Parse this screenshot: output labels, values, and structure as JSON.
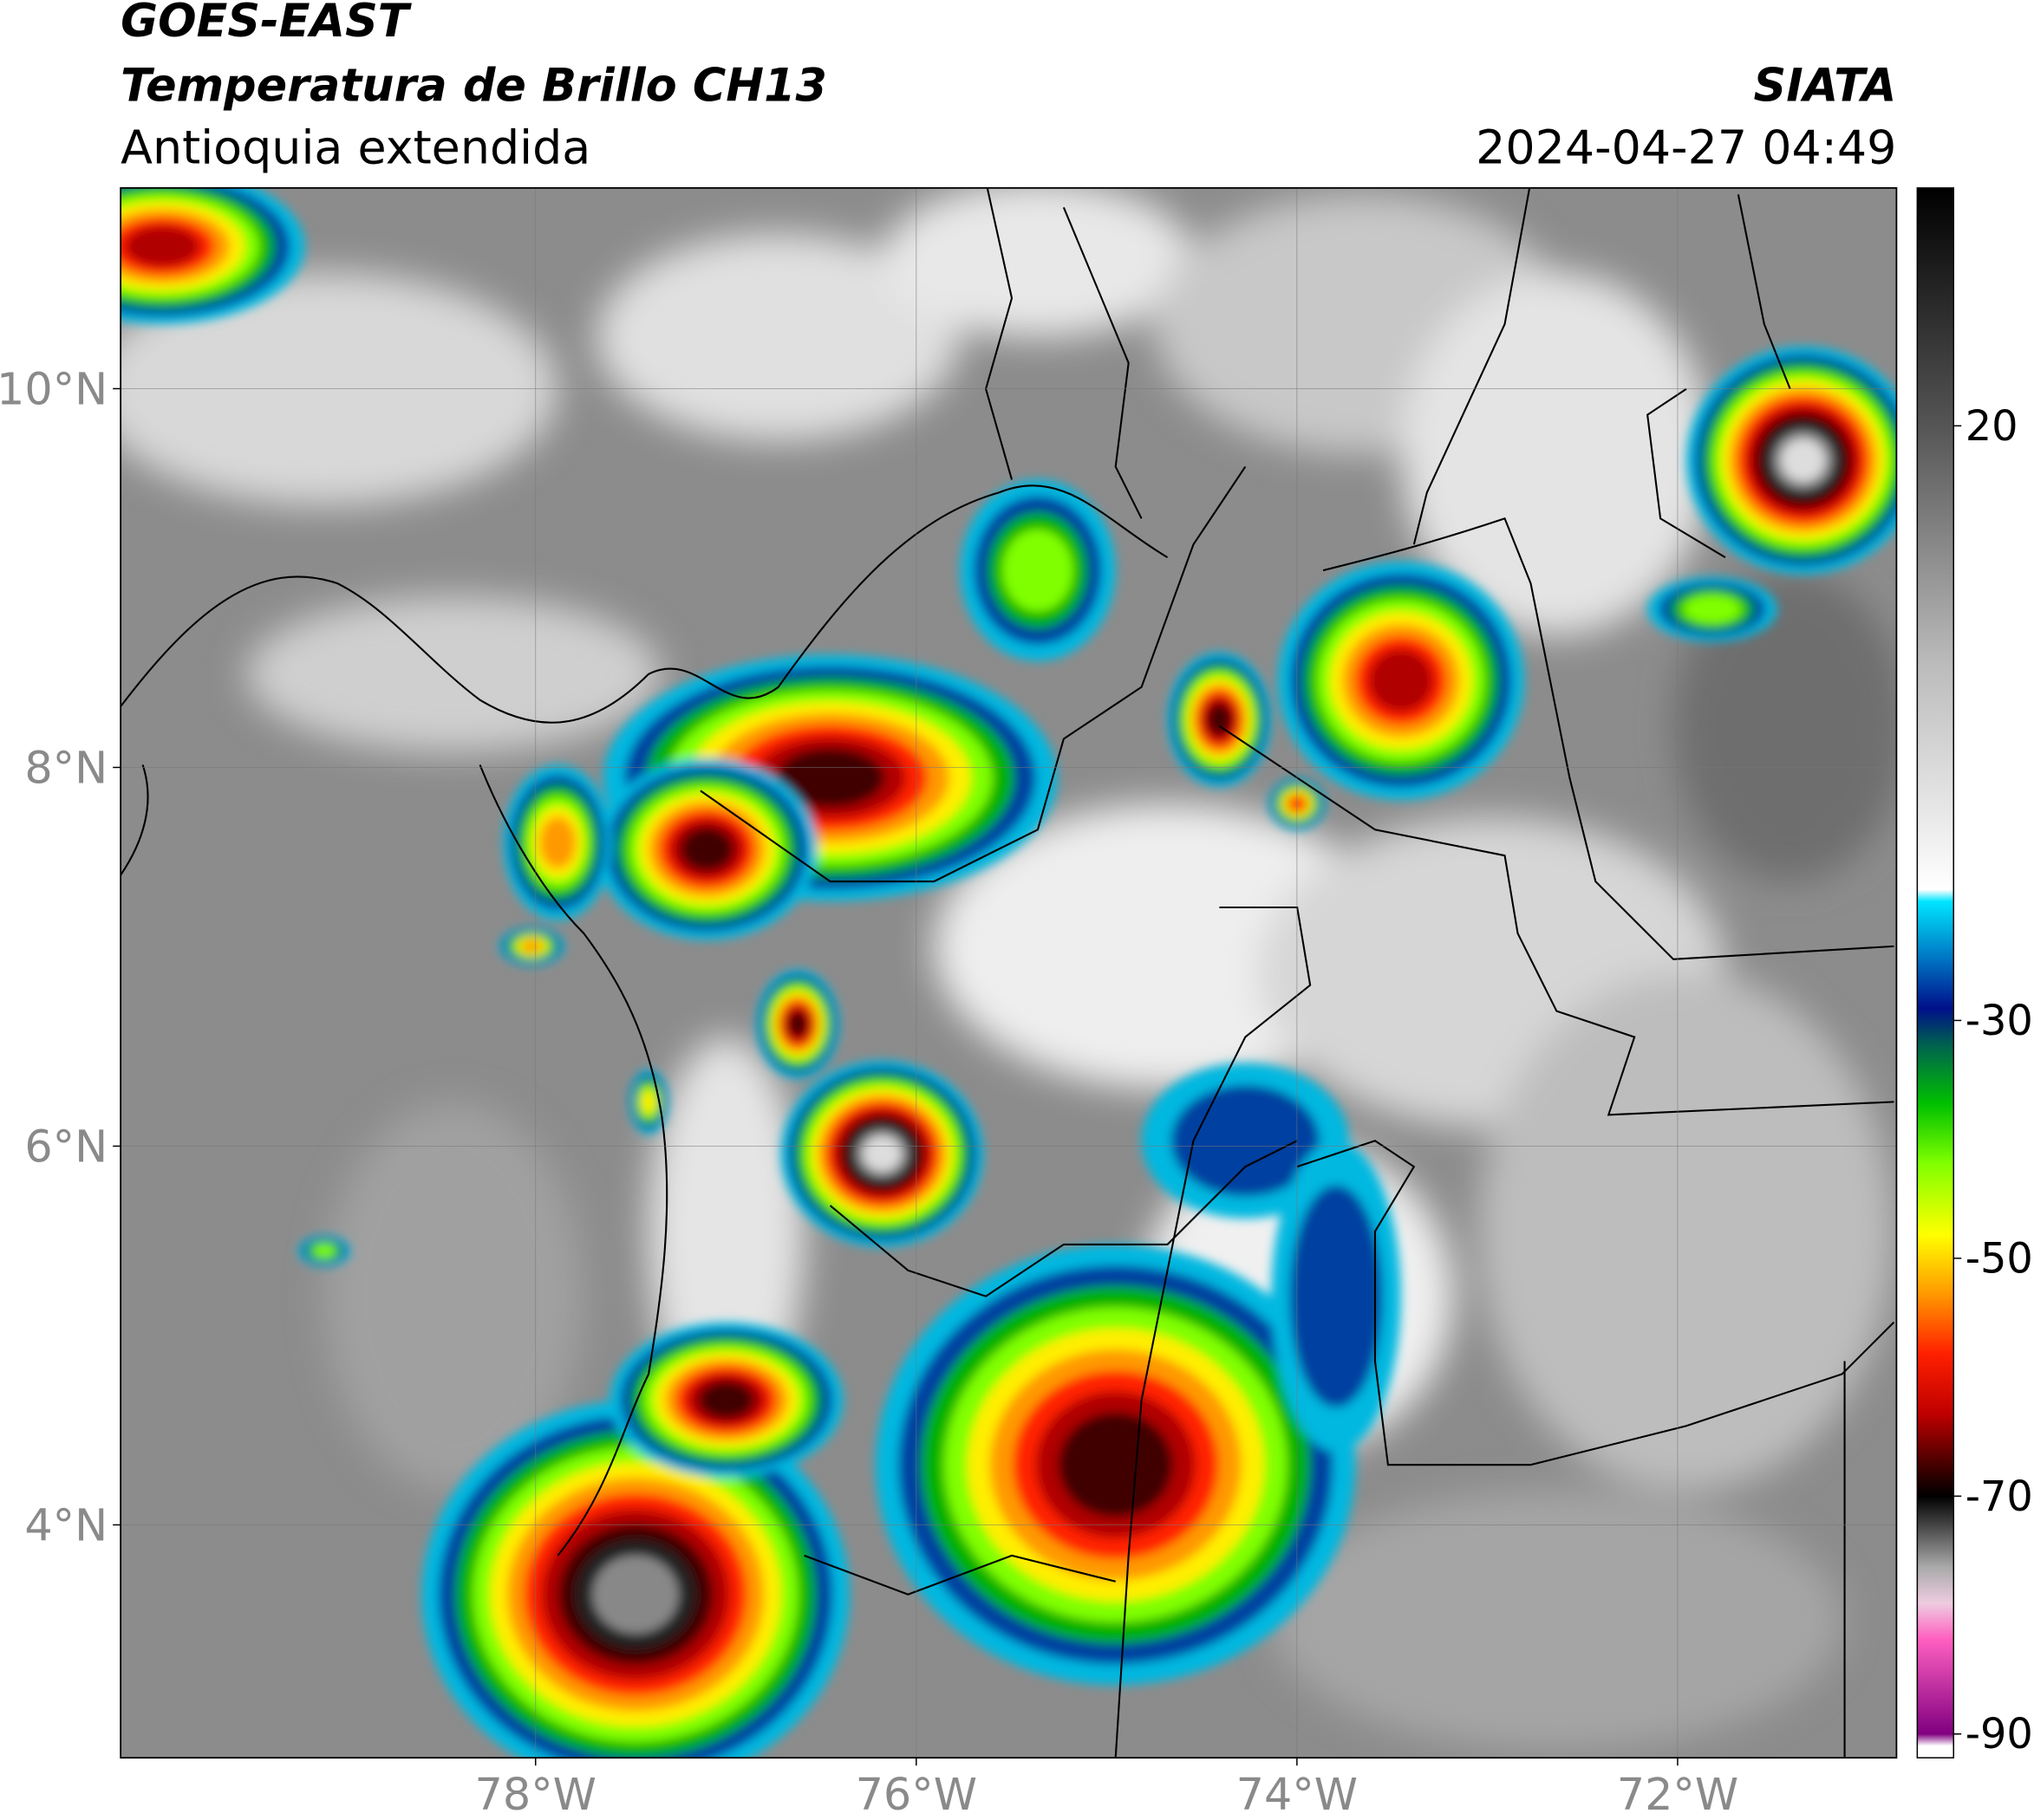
{
  "header": {
    "title_line1": "GOES-EAST",
    "title_line2": "Temperatura de Brillo CH13",
    "subtitle": "Antioquia extendida",
    "source": "SIATA",
    "timestamp": "2024-04-27 04:49"
  },
  "map": {
    "xlim": [
      -80.18,
      -70.85
    ],
    "ylim": [
      2.77,
      11.06
    ],
    "xticks": [
      {
        "value": -78,
        "label": "78°W"
      },
      {
        "value": -76,
        "label": "76°W"
      },
      {
        "value": -74,
        "label": "74°W"
      },
      {
        "value": -72,
        "label": "72°W"
      }
    ],
    "yticks": [
      {
        "value": 4,
        "label": "4°N"
      },
      {
        "value": 6,
        "label": "6°N"
      },
      {
        "value": 8,
        "label": "8°N"
      },
      {
        "value": 10,
        "label": "10°N"
      }
    ],
    "grid": true
  },
  "colorbar": {
    "lim": [
      -92,
      40
    ],
    "ticks": [
      20,
      -30,
      -50,
      -70,
      -90
    ],
    "colormap": [
      {
        "value": 40,
        "color": "#000000"
      },
      {
        "value": 20,
        "color": "#555555"
      },
      {
        "value": 0,
        "color": "#bbbbbb"
      },
      {
        "value": -19,
        "color": "#ffffff"
      },
      {
        "value": -20,
        "color": "#00e5ff"
      },
      {
        "value": -25,
        "color": "#0070c0"
      },
      {
        "value": -29,
        "color": "#00108a"
      },
      {
        "value": -32,
        "color": "#006050"
      },
      {
        "value": -37,
        "color": "#00c000"
      },
      {
        "value": -42,
        "color": "#80ff00"
      },
      {
        "value": -48,
        "color": "#ffff00"
      },
      {
        "value": -53,
        "color": "#ff9900"
      },
      {
        "value": -58,
        "color": "#ff2000"
      },
      {
        "value": -63,
        "color": "#c00000"
      },
      {
        "value": -67,
        "color": "#500000"
      },
      {
        "value": -70,
        "color": "#000000"
      },
      {
        "value": -76,
        "color": "#aaaaaa"
      },
      {
        "value": -79,
        "color": "#eecce0"
      },
      {
        "value": -82,
        "color": "#ff60c0"
      },
      {
        "value": -90,
        "color": "#800080"
      },
      {
        "value": -91,
        "color": "#ffffff"
      },
      {
        "value": -92,
        "color": "#ffffff"
      }
    ]
  }
}
